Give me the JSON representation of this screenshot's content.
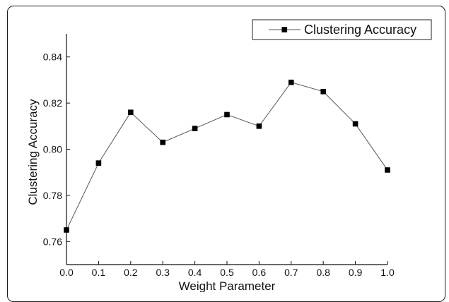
{
  "chart_data": {
    "type": "line",
    "title": "",
    "xlabel": "Weight Parameter",
    "ylabel": "Clustering Accuracy",
    "xlim": [
      0.0,
      1.0
    ],
    "ylim": [
      0.75,
      0.85
    ],
    "x_ticks": [
      "0.0",
      "0.1",
      "0.2",
      "0.3",
      "0.4",
      "0.5",
      "0.6",
      "0.7",
      "0.8",
      "0.9",
      "1.0"
    ],
    "y_ticks": [
      "0.76",
      "0.78",
      "0.80",
      "0.82",
      "0.84"
    ],
    "grid": false,
    "legend_position": "top-right",
    "series": [
      {
        "name": "Clustering Accuracy",
        "marker": "square",
        "line_color": "#555555",
        "marker_color": "#000000",
        "x": [
          0.0,
          0.1,
          0.2,
          0.3,
          0.4,
          0.5,
          0.6,
          0.7,
          0.8,
          0.9,
          1.0
        ],
        "y": [
          0.765,
          0.794,
          0.816,
          0.803,
          0.809,
          0.815,
          0.81,
          0.829,
          0.825,
          0.811,
          0.791
        ]
      }
    ]
  }
}
